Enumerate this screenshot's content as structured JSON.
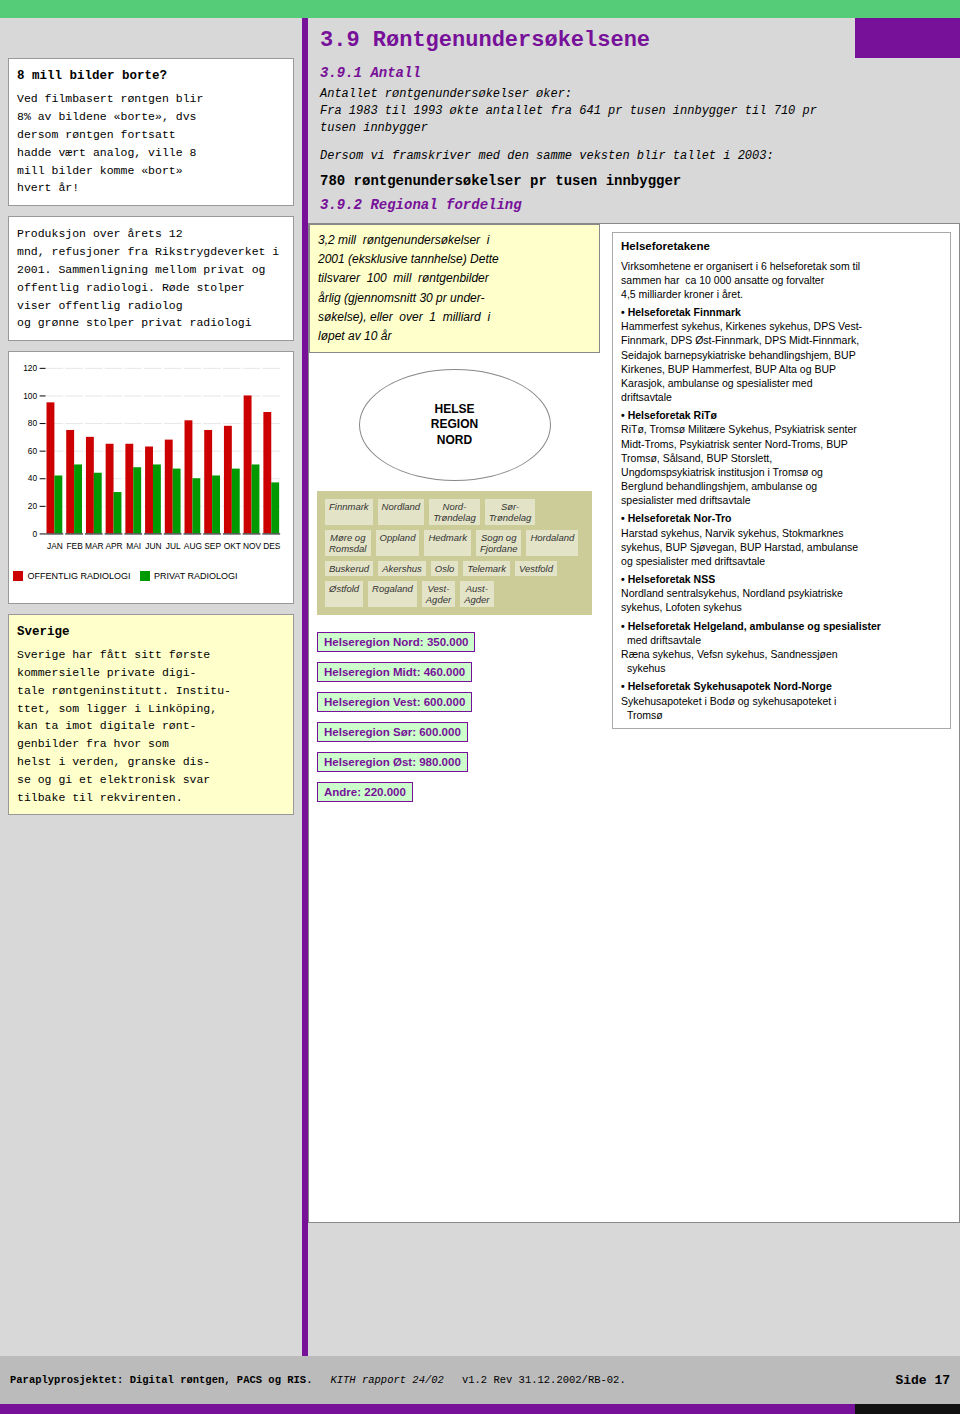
{
  "chart_data": {
    "type": "bar",
    "categories": [
      "JAN",
      "FEB",
      "MAR",
      "APR",
      "MAI",
      "JUN",
      "JUL",
      "AUG",
      "SEP",
      "OKT",
      "NOV",
      "DES"
    ],
    "series": [
      {
        "name": "OFFENTLIG RADIOLOGI",
        "color": "#cc0000",
        "values": [
          95,
          75,
          70,
          65,
          65,
          63,
          68,
          82,
          75,
          78,
          100,
          88
        ]
      },
      {
        "name": "PRIVAT RADIOLOGI",
        "color": "#009900",
        "values": [
          42,
          50,
          44,
          30,
          48,
          50,
          47,
          40,
          42,
          47,
          50,
          37
        ]
      }
    ],
    "ylim": [
      0,
      120
    ],
    "yticks": [
      0,
      20,
      40,
      60,
      80,
      100,
      120
    ],
    "grid": true,
    "legend": "bottom",
    "annotations": [
      "8 mill bilder borte?",
      "Ved filmbasert røntgen blir\n8% av bildene «borte», dvs\ndersom røntgen fortsatt\nhadde vært analog, ville 8\nmill bilder komme «bort»\nhvert år!",
      "Produksjon over årets 12\nmnd, refusjoner fra Rikstrygdeverket i 2001. Sammenligning mellom privat og offentlig radiologi. Røde stolper viser offentlig radiolog\nog grønne stolper privat radiologi",
      "Sverige",
      "Sverige har fått sitt første\nkommersielle private digi-\ntale røntgeninstitutt. Institu-\nttet, som ligger i Linköping,\nkan ta imot digitale rønt-\ngenbilder fra hvor som\nhelst i verden, granske dis-\nse og gi et elektronisk svar\ntilbake til rekvirenten.",
      "3.9 Røntgenundersøkelsene",
      "3.9.1 Antall",
      "Antallet røntgenundersøkelser øker:",
      "Fra 1983 til 1993 økte antallet fra 641 pr tusen innbygger til 710 pr",
      "tusen innbygger",
      "Dersom vi framskriver med den samme veksten blir tallet i 2003:",
      "780 røntgenundersøkelser pr tusen innbygger",
      "3.9.2 Regional fordeling",
      "3,2 mill  røntgenundersøkelser  i\n2001 (eksklusive tannhelse) Dette\ntilsvarer  100  mill  røntgenbilder\nårlig (gjennomsnitt 30 pr under-\nsøkelse), eller  over  1  milliard  i\nløpet av 10 år",
      "HELSE\nREGION\nNORD",
      "Helseregion Nord: 350.000",
      "Helseregion Midt: 460.000",
      "Helseregion Vest: 600.000",
      "Helseregion Sør: 600.000",
      "Helseregion Øst: 980.000",
      "Andre: 220.000",
      "Helseforetakene",
      "Virksomhetene er organisert i 6 helseforetak som til",
      "sammen har  ca 10 000 ansatte og forvalter",
      "4,5 milliarder kroner i året.",
      "• Helseforetak Finnmark",
      "Hammerfest sykehus, Kirkenes sykehus, DPS Vest-",
      "Finnmark, DPS Øst-Finnmark, DPS Midt-Finnmark,",
      "Seidajok barnepsykiatriske behandlingshjem, BUP",
      "Kirkenes, BUP Hammerfest, BUP Alta og BUP",
      "Karasjok, ambulanse og spesialister med",
      "driftsavtale",
      "• Helseforetak RiTø",
      "RiTø, Tromsø Militære Sykehus, Psykiatrisk senter",
      "Midt-Troms, Psykiatrisk senter Nord-Troms, BUP",
      "Tromsø, Sålsand, BUP Storslett,",
      "Ungdomspsykiatrisk institusjon i Tromsø og",
      "Berglund behandlingshjem, ambulanse og",
      "spesialister med driftsavtale",
      "• Helseforetak Nor-Tro",
      "Harstad sykehus, Narvik sykehus, Stokmarknes",
      "sykehus, BUP Sjøvegan, BUP Harstad, ambulanse",
      "og spesialister med driftsavtale",
      "• Helseforetak NSS",
      "Nordland sentralsykehus, Nordland psykiatriske",
      "sykehus, Lofoten sykehus",
      "• Helseforetak Helgeland, ambulanse og spesialister",
      "  med driftsavtale",
      "Ræna sykehus, Vefsn sykehus, Sandnessjøen",
      "  sykehus",
      "• Helseforetak Sykehusapotek Nord-Norge",
      "Sykehusapoteket i Bodø og sykehusapoteket i",
      "  Tromsø",
      "Finnmark",
      "Nordland",
      "Nord-\nTrøndelag",
      "Sør-\nTrøndelag",
      "Møre og\nRomsdal",
      "Oppland",
      "Hedmark",
      "Sogn og\nFjordane",
      "Hordaland",
      "Buskerud",
      "Akershus",
      "Oslo",
      "Telemark",
      "Vestfold",
      "Østfold",
      "Rogaland",
      "Vest-\nAgder",
      "Aust-\nAgder",
      "Paraplyprosjektet: Digital røntgen, PACS og RIS.",
      "KITH rapport 24/02",
      "v1.2 Rev 31.12.2002/RB-02.",
      "Side 17"
    ]
  }
}
